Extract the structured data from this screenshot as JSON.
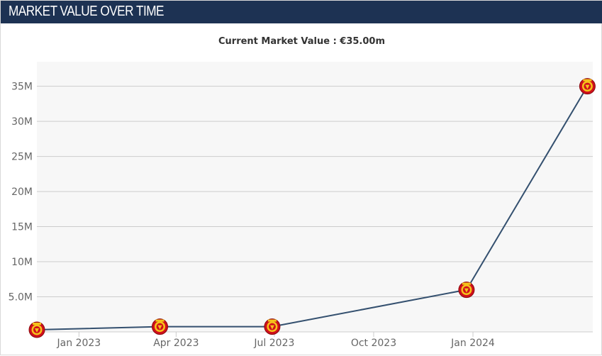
{
  "header": {
    "title": "MARKET VALUE OVER TIME"
  },
  "chart_data": {
    "type": "line",
    "title": "Current Market Value : €35.00m",
    "xlabel": "",
    "ylabel": "",
    "x_tick_labels": [
      "Jan 2023",
      "Apr 2023",
      "Jul 2023",
      "Oct 2023",
      "Jan 2024"
    ],
    "x_tick_dates": [
      "2023-01-01",
      "2023-04-01",
      "2023-07-01",
      "2023-10-01",
      "2024-01-01"
    ],
    "y_tick_labels": [
      "5.0M",
      "10M",
      "15M",
      "20M",
      "25M",
      "30M",
      "35M"
    ],
    "y_tick_values": [
      5,
      10,
      15,
      20,
      25,
      30,
      35
    ],
    "ylim": [
      0,
      38.5
    ],
    "xlim": [
      "2022-11-23",
      "2024-04-21"
    ],
    "grid": true,
    "legend": "none",
    "series": [
      {
        "points": [
          {
            "x": "2022-11-23",
            "y": 0.3
          },
          {
            "x": "2023-03-17",
            "y": 0.75
          },
          {
            "x": "2023-06-29",
            "y": 0.75
          },
          {
            "x": "2023-12-26",
            "y": 6.0
          },
          {
            "x": "2024-04-16",
            "y": 35.0
          }
        ]
      }
    ],
    "colors": {
      "line": "#34506f",
      "grid": "#cccccc",
      "plot_bg": "#f7f7f7",
      "marker": "#d0101b",
      "marker_accent": "#f5c21b"
    }
  }
}
